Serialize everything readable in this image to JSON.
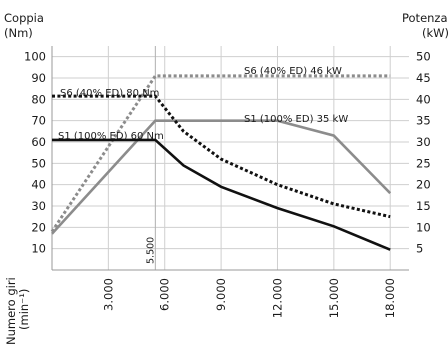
{
  "chart_data": {
    "type": "line",
    "left_axis_title": [
      "Coppia",
      "(Nm)"
    ],
    "right_axis_title": [
      "Potenza",
      "(kW)"
    ],
    "x_axis_title": [
      "Numero giri",
      "(min⁻¹)"
    ],
    "x_range": [
      0,
      19000
    ],
    "y_left_range": [
      0,
      105
    ],
    "y_right_range": [
      0,
      52.5
    ],
    "x_ticks": [
      {
        "value": 3000,
        "label": "3.000"
      },
      {
        "value": 6000,
        "label": "6.000"
      },
      {
        "value": 9000,
        "label": "9.000"
      },
      {
        "value": 12000,
        "label": "12.000"
      },
      {
        "value": 15000,
        "label": "15.000"
      },
      {
        "value": 18000,
        "label": "18.000"
      }
    ],
    "y_left_ticks": [
      10,
      20,
      30,
      40,
      50,
      60,
      70,
      80,
      90,
      100
    ],
    "y_right_ticks": [
      5,
      10,
      15,
      20,
      25,
      30,
      35,
      40,
      45,
      50
    ],
    "vline": {
      "x": 5500,
      "label": "5.500"
    },
    "series": [
      {
        "name": "S1 (100% ED) 60 Nm",
        "axis": "left",
        "color": "#111111",
        "dash": "solid",
        "x": [
          0,
          5500,
          7000,
          9000,
          12000,
          15000,
          18000
        ],
        "y": [
          61,
          61,
          49,
          39,
          29,
          20.5,
          9.5
        ]
      },
      {
        "name": "S6 (40% ED) 80 Nm",
        "axis": "left",
        "color": "#111111",
        "dash": "dotted",
        "x": [
          0,
          5500,
          7000,
          9000,
          12000,
          15000,
          18000
        ],
        "y": [
          81.5,
          81.5,
          65,
          52,
          40,
          31,
          25
        ]
      },
      {
        "name": "S1 (100% ED) 35 kW",
        "axis": "right",
        "color": "#8c8c8c",
        "dash": "solid",
        "x": [
          0,
          5500,
          12000,
          15000,
          18000
        ],
        "y": [
          8.5,
          35,
          35,
          31.5,
          18
        ]
      },
      {
        "name": "S6 (40% ED) 46 kW",
        "axis": "right",
        "color": "#8c8c8c",
        "dash": "dotted",
        "x": [
          0,
          5500,
          18000
        ],
        "y": [
          9,
          45.5,
          45.5
        ]
      }
    ],
    "grid": true
  }
}
